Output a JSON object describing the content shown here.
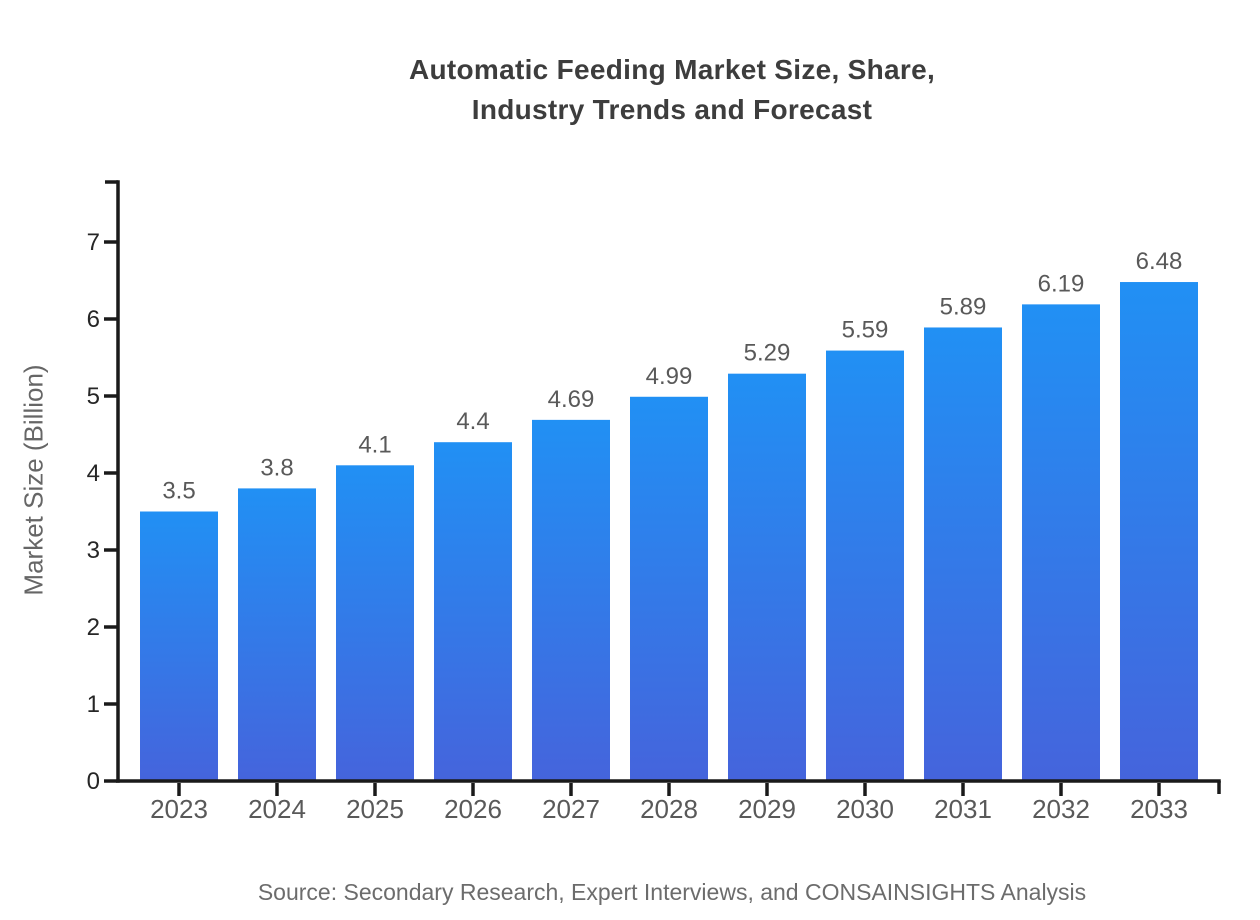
{
  "title": {
    "line1": "Automatic Feeding Market Size, Share,",
    "line2": "Industry Trends and Forecast"
  },
  "source": "Source: Secondary Research, Expert Interviews, and CONSAINSIGHTS Analysis",
  "chart_data": {
    "type": "bar",
    "title": "Automatic Feeding Market Size, Share, Industry Trends and Forecast",
    "categories": [
      "2023",
      "2024",
      "2025",
      "2026",
      "2027",
      "2028",
      "2029",
      "2030",
      "2031",
      "2032",
      "2033"
    ],
    "values": [
      3.5,
      3.8,
      4.1,
      4.4,
      4.69,
      4.99,
      5.29,
      5.59,
      5.89,
      6.19,
      6.48
    ],
    "xlabel": "",
    "ylabel": "Market Size (Billion)",
    "ylim": [
      0,
      7.78
    ],
    "yticks": [
      0,
      1,
      2,
      3,
      4,
      5,
      6,
      7
    ],
    "grid": false,
    "legend": false,
    "value_labels_shown": true,
    "colors": {
      "bar_gradient_top": "#2190f4",
      "bar_gradient_bottom": "#4564dc",
      "axis": "#1a1a1a",
      "ytick_label": "#262626",
      "xtick_label": "#595959",
      "value_label": "#595959",
      "title": "#3d3d3d",
      "ylabel": "#666666",
      "source": "#6c6c6c",
      "background": "#ffffff"
    }
  }
}
